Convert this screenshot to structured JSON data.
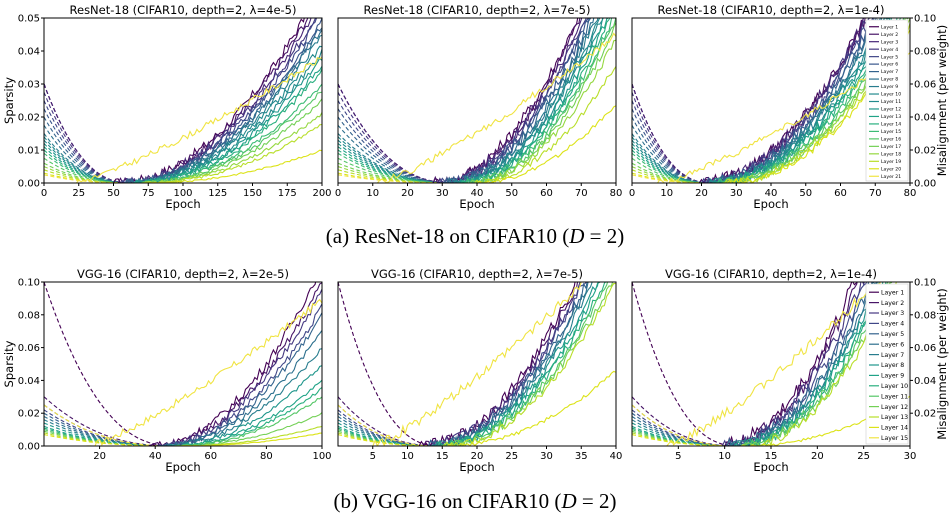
{
  "captions": {
    "a": {
      "prefix": "(a) ResNet-18 on CIFAR10 (",
      "var": "D",
      "suffix": " = 2)"
    },
    "b": {
      "prefix": "(b) VGG-16 on CIFAR10 (",
      "var": "D",
      "suffix": " = 2)"
    }
  },
  "chart_data": [
    {
      "type": "line",
      "title": "ResNet-18 (CIFAR10, depth=2, λ=4e-5)",
      "xlabel": "Epoch",
      "ylabel": "Sparsity",
      "xlim": [
        0,
        200
      ],
      "ylim": [
        0,
        0.05
      ],
      "xticks": [
        0,
        25,
        50,
        75,
        100,
        125,
        150,
        175,
        200
      ],
      "yticks": [
        0.0,
        0.01,
        0.02,
        0.03,
        0.04,
        0.05
      ],
      "ytick_labels": [
        "0.00",
        "0.01",
        "0.02",
        "0.03",
        "0.04",
        "0.05"
      ],
      "layers": 21,
      "min_x": 60,
      "sparsity_at_100": [
        0.022,
        0.018,
        0.014,
        0.013,
        0.012,
        0.011,
        0.01,
        0.009,
        0.0085,
        0.008,
        0.0075,
        0.007,
        0.0065,
        0.006,
        0.0055,
        0.005,
        0.0045,
        0.004,
        0.003,
        0.0025,
        0.008
      ],
      "sparsity_final": [
        0.06,
        0.058,
        0.056,
        0.054,
        0.052,
        0.05,
        0.048,
        0.047,
        0.045,
        0.042,
        0.04,
        0.038,
        0.036,
        0.034,
        0.03,
        0.028,
        0.025,
        0.021,
        0.018,
        0.01,
        0.038
      ],
      "misalign_start": [
        0.06,
        0.06,
        0.06,
        0.055,
        0.05,
        0.045,
        0.04,
        0.035,
        0.03,
        0.028,
        0.026,
        0.024,
        0.022,
        0.02,
        0.018,
        0.015,
        0.012,
        0.01,
        0.008,
        0.006,
        0.005
      ],
      "legend": false
    },
    {
      "type": "line",
      "title": "ResNet-18 (CIFAR10, depth=2, λ=7e-5)",
      "xlabel": "Epoch",
      "ylabel": "",
      "xlim": [
        0,
        80
      ],
      "ylim": [
        0,
        0.05
      ],
      "xticks": [
        0,
        10,
        20,
        30,
        40,
        50,
        60,
        70,
        80
      ],
      "layers": 21,
      "min_x": 32,
      "sparsity_final": [
        0.08,
        0.078,
        0.076,
        0.074,
        0.072,
        0.07,
        0.068,
        0.066,
        0.064,
        0.062,
        0.06,
        0.058,
        0.056,
        0.054,
        0.052,
        0.05,
        0.048,
        0.044,
        0.036,
        0.024,
        0.045
      ],
      "misalign_start": [
        0.06,
        0.06,
        0.06,
        0.055,
        0.05,
        0.045,
        0.04,
        0.035,
        0.03,
        0.028,
        0.026,
        0.024,
        0.022,
        0.02,
        0.018,
        0.015,
        0.012,
        0.01,
        0.008,
        0.006,
        0.005
      ],
      "legend": false
    },
    {
      "type": "line",
      "title": "ResNet-18 (CIFAR10, depth=2, λ=1e-4)",
      "xlabel": "Epoch",
      "ylabel": "",
      "y2label": "Misalignment (per weight)",
      "xlim": [
        0,
        80
      ],
      "ylim": [
        0,
        0.05
      ],
      "y2lim": [
        0,
        0.1
      ],
      "xticks": [
        0,
        10,
        20,
        30,
        40,
        50,
        60,
        70,
        80
      ],
      "y2ticks": [
        0.0,
        0.02,
        0.04,
        0.06,
        0.08,
        0.1
      ],
      "y2tick_labels": [
        "0.00",
        "0.02",
        "0.04",
        "0.06",
        "0.08",
        "0.10"
      ],
      "layers": 21,
      "min_x": 22,
      "sparsity_final": [
        0.08,
        0.08,
        0.08,
        0.078,
        0.076,
        0.074,
        0.072,
        0.07,
        0.068,
        0.066,
        0.064,
        0.062,
        0.06,
        0.058,
        0.056,
        0.054,
        0.052,
        0.05,
        0.048,
        0.046,
        0.04
      ],
      "misalign_start": [
        0.06,
        0.06,
        0.06,
        0.055,
        0.05,
        0.045,
        0.04,
        0.035,
        0.03,
        0.028,
        0.026,
        0.024,
        0.022,
        0.02,
        0.018,
        0.015,
        0.012,
        0.01,
        0.008,
        0.006,
        0.005
      ],
      "legend": true,
      "legend_position": "right",
      "legend_labels": [
        "Layer 1",
        "Layer 2",
        "Layer 3",
        "Layer 4",
        "Layer 5",
        "Layer 6",
        "Layer 7",
        "Layer 8",
        "Layer 9",
        "Layer 10",
        "Layer 11",
        "Layer 12",
        "Layer 13",
        "Layer 14",
        "Layer 15",
        "Layer 16",
        "Layer 17",
        "Layer 18",
        "Layer 19",
        "Layer 20",
        "Layer 21"
      ]
    },
    {
      "type": "line",
      "title": "VGG-16 (CIFAR10, depth=2, λ=2e-5)",
      "xlabel": "Epoch",
      "ylabel": "Sparsity",
      "xlim": [
        0,
        100
      ],
      "ylim": [
        0,
        0.1
      ],
      "xticks": [
        20,
        40,
        60,
        80,
        100
      ],
      "yticks": [
        0.0,
        0.02,
        0.04,
        0.06,
        0.08,
        0.1
      ],
      "ytick_labels": [
        "0.00",
        "0.02",
        "0.04",
        "0.06",
        "0.08",
        "0.10"
      ],
      "layers": 15,
      "min_x": 45,
      "sparsity_final": [
        0.11,
        0.1,
        0.095,
        0.085,
        0.08,
        0.07,
        0.06,
        0.05,
        0.04,
        0.035,
        0.03,
        0.02,
        0.012,
        0.008,
        0.089
      ],
      "misalign_start": [
        0.1,
        0.03,
        0.025,
        0.022,
        0.02,
        0.018,
        0.016,
        0.014,
        0.012,
        0.011,
        0.01,
        0.009,
        0.008,
        0.007,
        0.025
      ],
      "legend": false
    },
    {
      "type": "line",
      "title": "VGG-16 (CIFAR10, depth=2, λ=7e-5)",
      "xlabel": "Epoch",
      "ylabel": "",
      "xlim": [
        0,
        40
      ],
      "ylim": [
        0,
        0.1
      ],
      "xticks": [
        5,
        10,
        15,
        20,
        25,
        30,
        35,
        40
      ],
      "layers": 15,
      "min_x": 14,
      "sparsity_final": [
        0.16,
        0.155,
        0.15,
        0.145,
        0.14,
        0.135,
        0.13,
        0.125,
        0.12,
        0.115,
        0.11,
        0.105,
        0.1,
        0.046,
        0.12
      ],
      "misalign_start": [
        0.1,
        0.03,
        0.025,
        0.022,
        0.02,
        0.018,
        0.016,
        0.014,
        0.012,
        0.011,
        0.01,
        0.009,
        0.008,
        0.007,
        0.025
      ],
      "legend": false
    },
    {
      "type": "line",
      "title": "VGG-16 (CIFAR10, depth=2, λ=1e-4)",
      "xlabel": "Epoch",
      "ylabel": "",
      "y2label": "Misalignment (per weight)",
      "xlim": [
        0,
        30
      ],
      "ylim": [
        0,
        0.1
      ],
      "y2lim": [
        0,
        0.1
      ],
      "xticks": [
        5,
        10,
        15,
        20,
        25,
        30
      ],
      "y2ticks": [
        0.02,
        0.04,
        0.06,
        0.08,
        0.1
      ],
      "y2tick_labels": [
        "0.02",
        "0.04",
        "0.06",
        "0.08",
        "0.10"
      ],
      "layers": 15,
      "min_x": 11,
      "sparsity_final": [
        0.2,
        0.19,
        0.18,
        0.17,
        0.16,
        0.155,
        0.15,
        0.145,
        0.14,
        0.135,
        0.13,
        0.125,
        0.12,
        0.03,
        0.12
      ],
      "misalign_start": [
        0.1,
        0.03,
        0.025,
        0.022,
        0.02,
        0.018,
        0.016,
        0.014,
        0.012,
        0.011,
        0.01,
        0.009,
        0.008,
        0.007,
        0.025
      ],
      "legend": true,
      "legend_position": "right",
      "legend_labels": [
        "Layer 1",
        "Layer 2",
        "Layer 3",
        "Layer 4",
        "Layer 5",
        "Layer 6",
        "Layer 7",
        "Layer 8",
        "Layer 9",
        "Layer 10",
        "Layer 11",
        "Layer 12",
        "Layer 13",
        "Layer 14",
        "Layer 15"
      ]
    }
  ]
}
